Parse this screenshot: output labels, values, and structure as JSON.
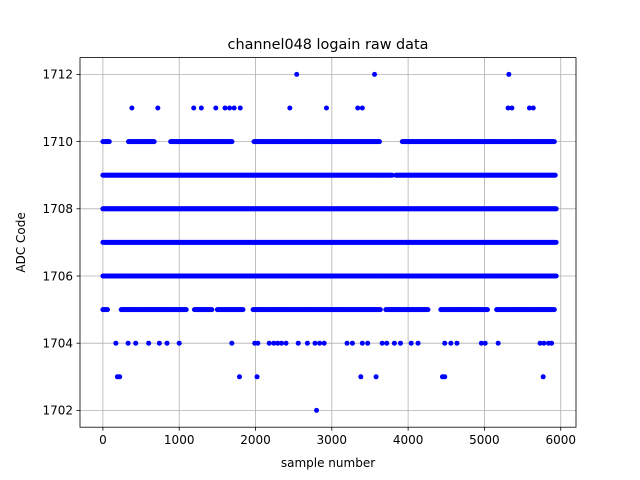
{
  "chart_data": {
    "type": "scatter",
    "title": "channel048 logain raw data",
    "xlabel": "sample number",
    "ylabel": "ADC Code",
    "xlim": [
      -300,
      6200
    ],
    "ylim": [
      1701.5,
      1712.5
    ],
    "xticks": [
      0,
      1000,
      2000,
      3000,
      4000,
      5000,
      6000
    ],
    "yticks": [
      1702,
      1704,
      1706,
      1708,
      1710,
      1712
    ],
    "grid": true,
    "marker_color": "#0000ff",
    "series": [
      {
        "dense_bands": [
          {
            "y": 1705,
            "x_start": 0,
            "x_end": 5920,
            "gaps": [
              [
                70,
                240
              ],
              [
                1100,
                1190
              ],
              [
                1430,
                1500
              ],
              [
                1840,
                1960
              ],
              [
                3640,
                3700
              ],
              [
                4260,
                4420
              ],
              [
                5040,
                5150
              ]
            ]
          },
          {
            "y": 1706,
            "x_start": 0,
            "x_end": 5950,
            "gaps": []
          },
          {
            "y": 1707,
            "x_start": 0,
            "x_end": 5950,
            "gaps": []
          },
          {
            "y": 1708,
            "x_start": 0,
            "x_end": 5950,
            "gaps": []
          },
          {
            "y": 1709,
            "x_start": 0,
            "x_end": 5930,
            "gaps": [
              [
                3800,
                3840
              ]
            ]
          },
          {
            "y": 1710,
            "x_start": 0,
            "x_end": 5920,
            "gaps": [
              [
                90,
                330
              ],
              [
                680,
                880
              ],
              [
                1700,
                1980
              ],
              [
                3630,
                3920
              ]
            ]
          }
        ],
        "sparse_points": [
          {
            "x": 380,
            "y": 1711
          },
          {
            "x": 720,
            "y": 1711
          },
          {
            "x": 1190,
            "y": 1711
          },
          {
            "x": 1290,
            "y": 1711
          },
          {
            "x": 1480,
            "y": 1711
          },
          {
            "x": 1600,
            "y": 1711
          },
          {
            "x": 1660,
            "y": 1711
          },
          {
            "x": 1720,
            "y": 1711
          },
          {
            "x": 1800,
            "y": 1711
          },
          {
            "x": 2450,
            "y": 1711
          },
          {
            "x": 2930,
            "y": 1711
          },
          {
            "x": 3340,
            "y": 1711
          },
          {
            "x": 3400,
            "y": 1711
          },
          {
            "x": 5310,
            "y": 1711
          },
          {
            "x": 5360,
            "y": 1711
          },
          {
            "x": 5590,
            "y": 1711
          },
          {
            "x": 5640,
            "y": 1711
          },
          {
            "x": 2540,
            "y": 1712
          },
          {
            "x": 3560,
            "y": 1712
          },
          {
            "x": 5320,
            "y": 1712
          },
          {
            "x": 170,
            "y": 1704
          },
          {
            "x": 330,
            "y": 1704
          },
          {
            "x": 430,
            "y": 1704
          },
          {
            "x": 600,
            "y": 1704
          },
          {
            "x": 740,
            "y": 1704
          },
          {
            "x": 840,
            "y": 1704
          },
          {
            "x": 1000,
            "y": 1704
          },
          {
            "x": 1690,
            "y": 1704
          },
          {
            "x": 1990,
            "y": 1704
          },
          {
            "x": 2030,
            "y": 1704
          },
          {
            "x": 2180,
            "y": 1704
          },
          {
            "x": 2240,
            "y": 1704
          },
          {
            "x": 2290,
            "y": 1704
          },
          {
            "x": 2340,
            "y": 1704
          },
          {
            "x": 2400,
            "y": 1704
          },
          {
            "x": 2560,
            "y": 1704
          },
          {
            "x": 2680,
            "y": 1704
          },
          {
            "x": 2780,
            "y": 1704
          },
          {
            "x": 2840,
            "y": 1704
          },
          {
            "x": 2900,
            "y": 1704
          },
          {
            "x": 3200,
            "y": 1704
          },
          {
            "x": 3270,
            "y": 1704
          },
          {
            "x": 3400,
            "y": 1704
          },
          {
            "x": 3470,
            "y": 1704
          },
          {
            "x": 3660,
            "y": 1704
          },
          {
            "x": 3720,
            "y": 1704
          },
          {
            "x": 3820,
            "y": 1704
          },
          {
            "x": 3900,
            "y": 1704
          },
          {
            "x": 4040,
            "y": 1704
          },
          {
            "x": 4130,
            "y": 1704
          },
          {
            "x": 4480,
            "y": 1704
          },
          {
            "x": 4560,
            "y": 1704
          },
          {
            "x": 4640,
            "y": 1704
          },
          {
            "x": 4960,
            "y": 1704
          },
          {
            "x": 5010,
            "y": 1704
          },
          {
            "x": 5180,
            "y": 1704
          },
          {
            "x": 5730,
            "y": 1704
          },
          {
            "x": 5780,
            "y": 1704
          },
          {
            "x": 5840,
            "y": 1704
          },
          {
            "x": 5880,
            "y": 1704
          },
          {
            "x": 190,
            "y": 1703
          },
          {
            "x": 220,
            "y": 1703
          },
          {
            "x": 1790,
            "y": 1703
          },
          {
            "x": 2020,
            "y": 1703
          },
          {
            "x": 3380,
            "y": 1703
          },
          {
            "x": 3580,
            "y": 1703
          },
          {
            "x": 4450,
            "y": 1703
          },
          {
            "x": 4480,
            "y": 1703
          },
          {
            "x": 5770,
            "y": 1703
          },
          {
            "x": 2800,
            "y": 1702
          }
        ]
      }
    ]
  }
}
